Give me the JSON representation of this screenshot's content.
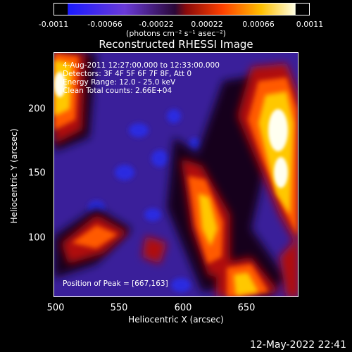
{
  "colorbar": {
    "ticks": [
      "-0.0011",
      "-0.00066",
      "-0.00022",
      "0.00022",
      "0.00066",
      "0.0011"
    ],
    "units_text": "(photons cm⁻² s⁻¹ asec⁻²)",
    "colors": [
      "#1a1aff",
      "#6a3ad8",
      "#3a0f5a",
      "#c81818",
      "#ff6a00",
      "#ffd000",
      "#ffffe6"
    ]
  },
  "title": "Reconstructed RHESSI Image",
  "annotations": {
    "time_range": "4-Aug-2011 12:27:00.000 to 12:33:00.000",
    "detectors": "Detectors: 3F 4F 5F 6F 7F 8F, Att 0",
    "energy_range": "Energy Range: 12.0 - 25.0 keV",
    "algorithm": "Clean     Total counts: 2.66E+04",
    "peak_position": "Position of Peak = [667,163]"
  },
  "x_axis": {
    "label": "Heliocentric X (arcsec)",
    "ticks": [
      "500",
      "550",
      "600",
      "650"
    ]
  },
  "y_axis": {
    "label": "Heliocentric Y (arcsec)",
    "ticks": [
      "200",
      "150",
      "100"
    ]
  },
  "timestamp": "12-May-2022 22:41"
}
